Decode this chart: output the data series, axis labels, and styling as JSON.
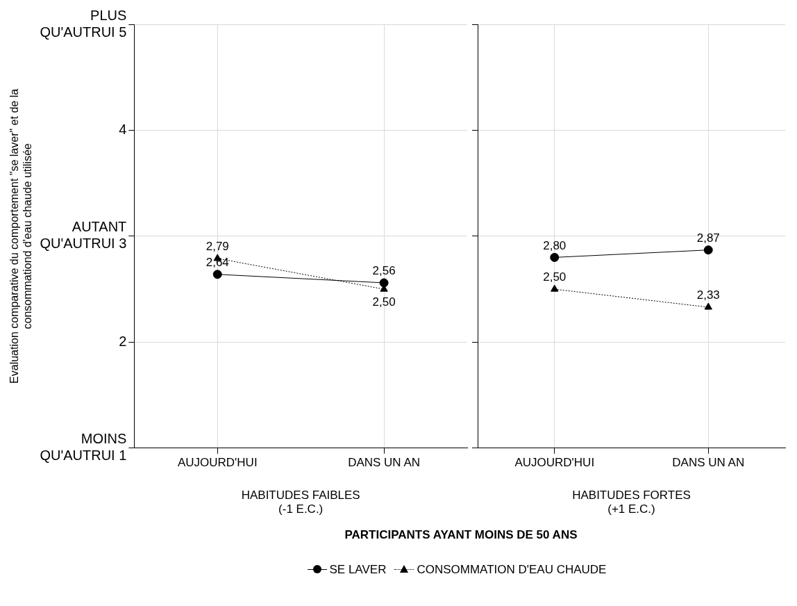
{
  "chart_data": [
    {
      "type": "line",
      "categories": [
        "AUJOURD'HUI",
        "DANS UN AN"
      ],
      "xlabel": "HABITUDES FAIBLES\n(-1 E.C.)",
      "ylabel": "Evaluation comparative du comportement \"se laver\" et de la\nconsommationd d'eau chaude utilisée",
      "ylim": [
        1,
        5
      ],
      "yticks": [
        {
          "value": 1,
          "label": "MOINS QU'AUTRUI 1"
        },
        2,
        {
          "value": 3,
          "label": "AUTANT QU'AUTRUI 3"
        },
        4,
        {
          "value": 5,
          "label": "PLUS QU'AUTRUI 5"
        }
      ],
      "grid": true,
      "legend": "bottom",
      "annotations": [
        "PARTICIPANTS AYANT MOINS DE 50 ANS"
      ],
      "series": [
        {
          "name": "SE LAVER",
          "color": "#000000",
          "values": [
            2.64,
            2.56
          ],
          "value_labels": [
            "2,64",
            "2,56"
          ],
          "marker": "circle",
          "line_style": "solid"
        },
        {
          "name": "CONSOMMATION D'EAU CHAUDE",
          "color": "#000000",
          "values": [
            2.79,
            2.5
          ],
          "value_labels": [
            "2,79",
            "2,50"
          ],
          "marker": "triangle",
          "line_style": "dotted"
        }
      ]
    },
    {
      "type": "line",
      "categories": [
        "AUJOURD'HUI",
        "DANS UN AN"
      ],
      "xlabel": "HABITUDES FORTES\n(+1 E.C.)",
      "ylim": [
        1,
        5
      ],
      "yticks": [
        1,
        2,
        3,
        4,
        5
      ],
      "grid": true,
      "tick_labels": "x",
      "series": [
        {
          "color": "#000000",
          "values": [
            2.8,
            2.87
          ],
          "value_labels": [
            "2,80",
            "2,87"
          ],
          "marker": "circle",
          "line_style": "solid"
        },
        {
          "color": "#000000",
          "values": [
            2.5,
            2.33
          ],
          "value_labels": [
            "2,50",
            "2,33"
          ],
          "marker": "triangle",
          "line_style": "dotted"
        }
      ]
    }
  ]
}
